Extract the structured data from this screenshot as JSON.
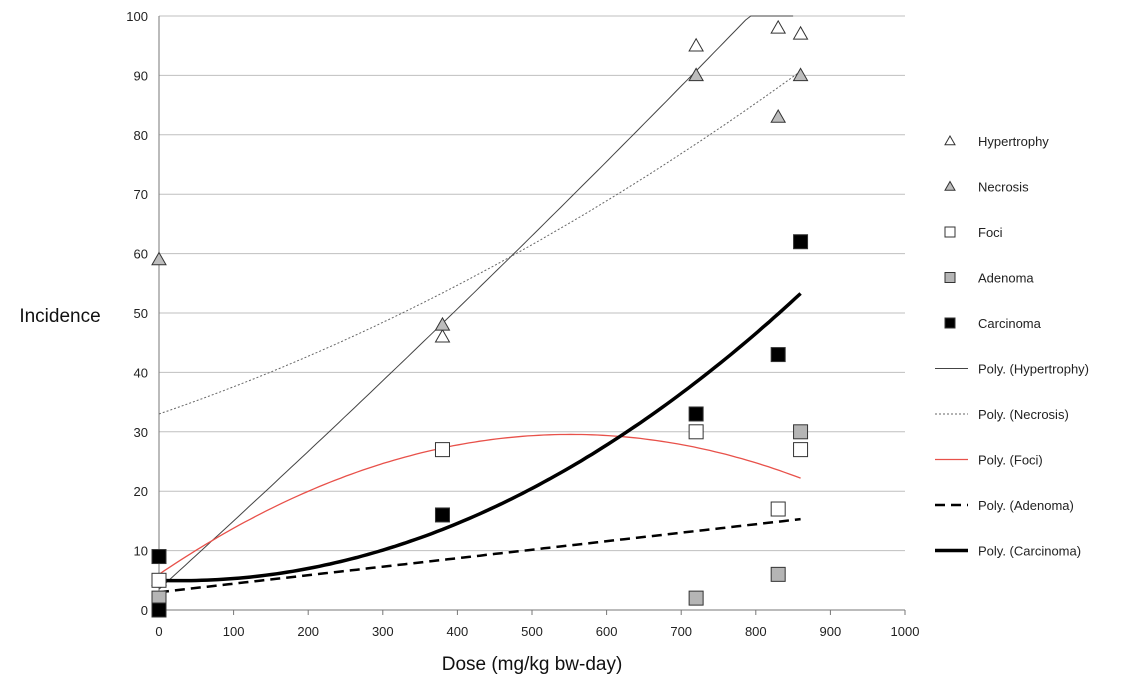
{
  "chart_data": {
    "type": "scatter",
    "xlabel": "Dose (mg/kg bw-day)",
    "ylabel": "Incidence",
    "xlim": [
      0,
      1000
    ],
    "ylim": [
      0,
      100
    ],
    "x_ticks": [
      "0",
      "100",
      "200",
      "300",
      "400",
      "500",
      "600",
      "700",
      "800",
      "900",
      "1000"
    ],
    "y_ticks": [
      "0",
      "10",
      "20",
      "30",
      "40",
      "50",
      "60",
      "70",
      "80",
      "90",
      "100"
    ],
    "grid": "horizontal",
    "legend_position": "right",
    "series": [
      {
        "name": "Hypertrophy",
        "marker": "triangle",
        "fill": "#ffffff",
        "points": [
          [
            0,
            5
          ],
          [
            380,
            46
          ],
          [
            720,
            95
          ],
          [
            830,
            98
          ],
          [
            860,
            97
          ]
        ]
      },
      {
        "name": "Necrosis",
        "marker": "triangle",
        "fill": "#bdbdbd",
        "points": [
          [
            0,
            59
          ],
          [
            380,
            48
          ],
          [
            720,
            90
          ],
          [
            830,
            83
          ],
          [
            860,
            90
          ]
        ]
      },
      {
        "name": "Foci",
        "marker": "square",
        "fill": "#ffffff",
        "points": [
          [
            0,
            5
          ],
          [
            380,
            27
          ],
          [
            720,
            30
          ],
          [
            830,
            17
          ],
          [
            860,
            27
          ]
        ]
      },
      {
        "name": "Adenoma",
        "marker": "square",
        "fill": "#b5b5b5",
        "points": [
          [
            0,
            2
          ],
          [
            720,
            2
          ],
          [
            830,
            6
          ],
          [
            860,
            30
          ]
        ]
      },
      {
        "name": "Carcinoma",
        "marker": "square",
        "fill": "#000000",
        "points": [
          [
            0,
            0
          ],
          [
            0,
            9
          ],
          [
            380,
            16
          ],
          [
            720,
            33
          ],
          [
            830,
            43
          ],
          [
            860,
            62
          ]
        ]
      }
    ],
    "trendlines": [
      {
        "name": "Poly. (Hypertrophy)",
        "color": "#444444",
        "width": 1,
        "dash": "",
        "x_range": [
          0,
          850
        ],
        "coef": [
          3.5,
          0.114,
          1e-05
        ]
      },
      {
        "name": "Poly. (Necrosis)",
        "color": "#666666",
        "width": 1,
        "dash": "2,2",
        "x_range": [
          0,
          860
        ],
        "coef": [
          33,
          0.043,
          2.8e-05
        ]
      },
      {
        "name": "Poly. (Foci)",
        "color": "#e8514a",
        "width": 1.3,
        "dash": "",
        "x_range": [
          0,
          860
        ],
        "coef": [
          6,
          0.0854,
          -7.74e-05
        ]
      },
      {
        "name": "Poly. (Adenoma)",
        "color": "#000000",
        "width": 2.5,
        "dash": "10,6",
        "x_range": [
          0,
          860
        ],
        "coef": [
          3,
          0.0143,
          0
        ]
      },
      {
        "name": "Poly. (Carcinoma)",
        "color": "#000000",
        "width": 3.5,
        "dash": "",
        "x_range": [
          0,
          860
        ],
        "coef": [
          5,
          -0.00406,
          7e-05
        ]
      }
    ]
  }
}
